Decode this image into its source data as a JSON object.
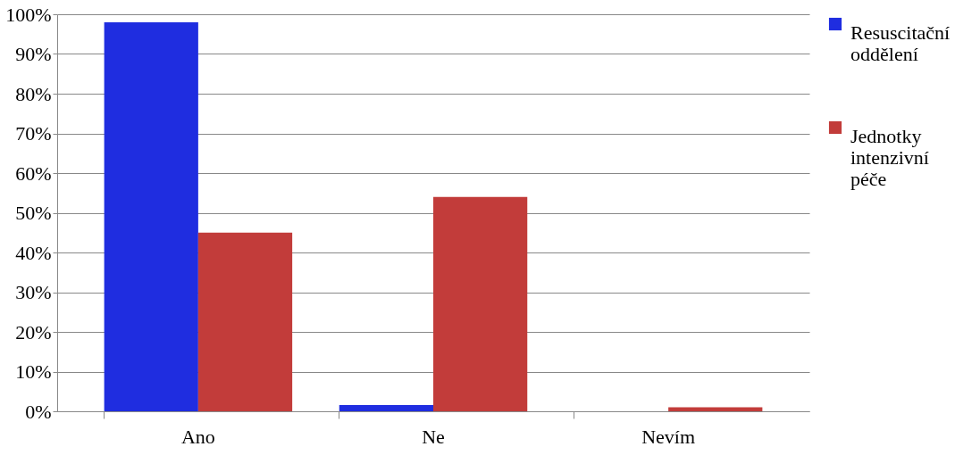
{
  "chart_data": {
    "type": "bar",
    "categories": [
      "Ano",
      "Ne",
      "Nevím"
    ],
    "series": [
      {
        "name": "Resuscitační oddělení",
        "color": "#1f2de0",
        "values": [
          98,
          1.6,
          null
        ]
      },
      {
        "name": "Jednotky intenzivní péče",
        "color": "#c23c3a",
        "values": [
          45,
          54,
          1
        ]
      }
    ],
    "ylim": [
      0,
      100
    ],
    "yticks": [
      {
        "value": 0,
        "label": "0%"
      },
      {
        "value": 10,
        "label": "10%"
      },
      {
        "value": 20,
        "label": "20%"
      },
      {
        "value": 30,
        "label": "30%"
      },
      {
        "value": 40,
        "label": "40%"
      },
      {
        "value": 50,
        "label": "50%"
      },
      {
        "value": 60,
        "label": "60%"
      },
      {
        "value": 70,
        "label": "70%"
      },
      {
        "value": 80,
        "label": "80%"
      },
      {
        "value": 90,
        "label": "90%"
      },
      {
        "value": 100,
        "label": "100%"
      }
    ],
    "grid": "y",
    "legend": "right"
  }
}
